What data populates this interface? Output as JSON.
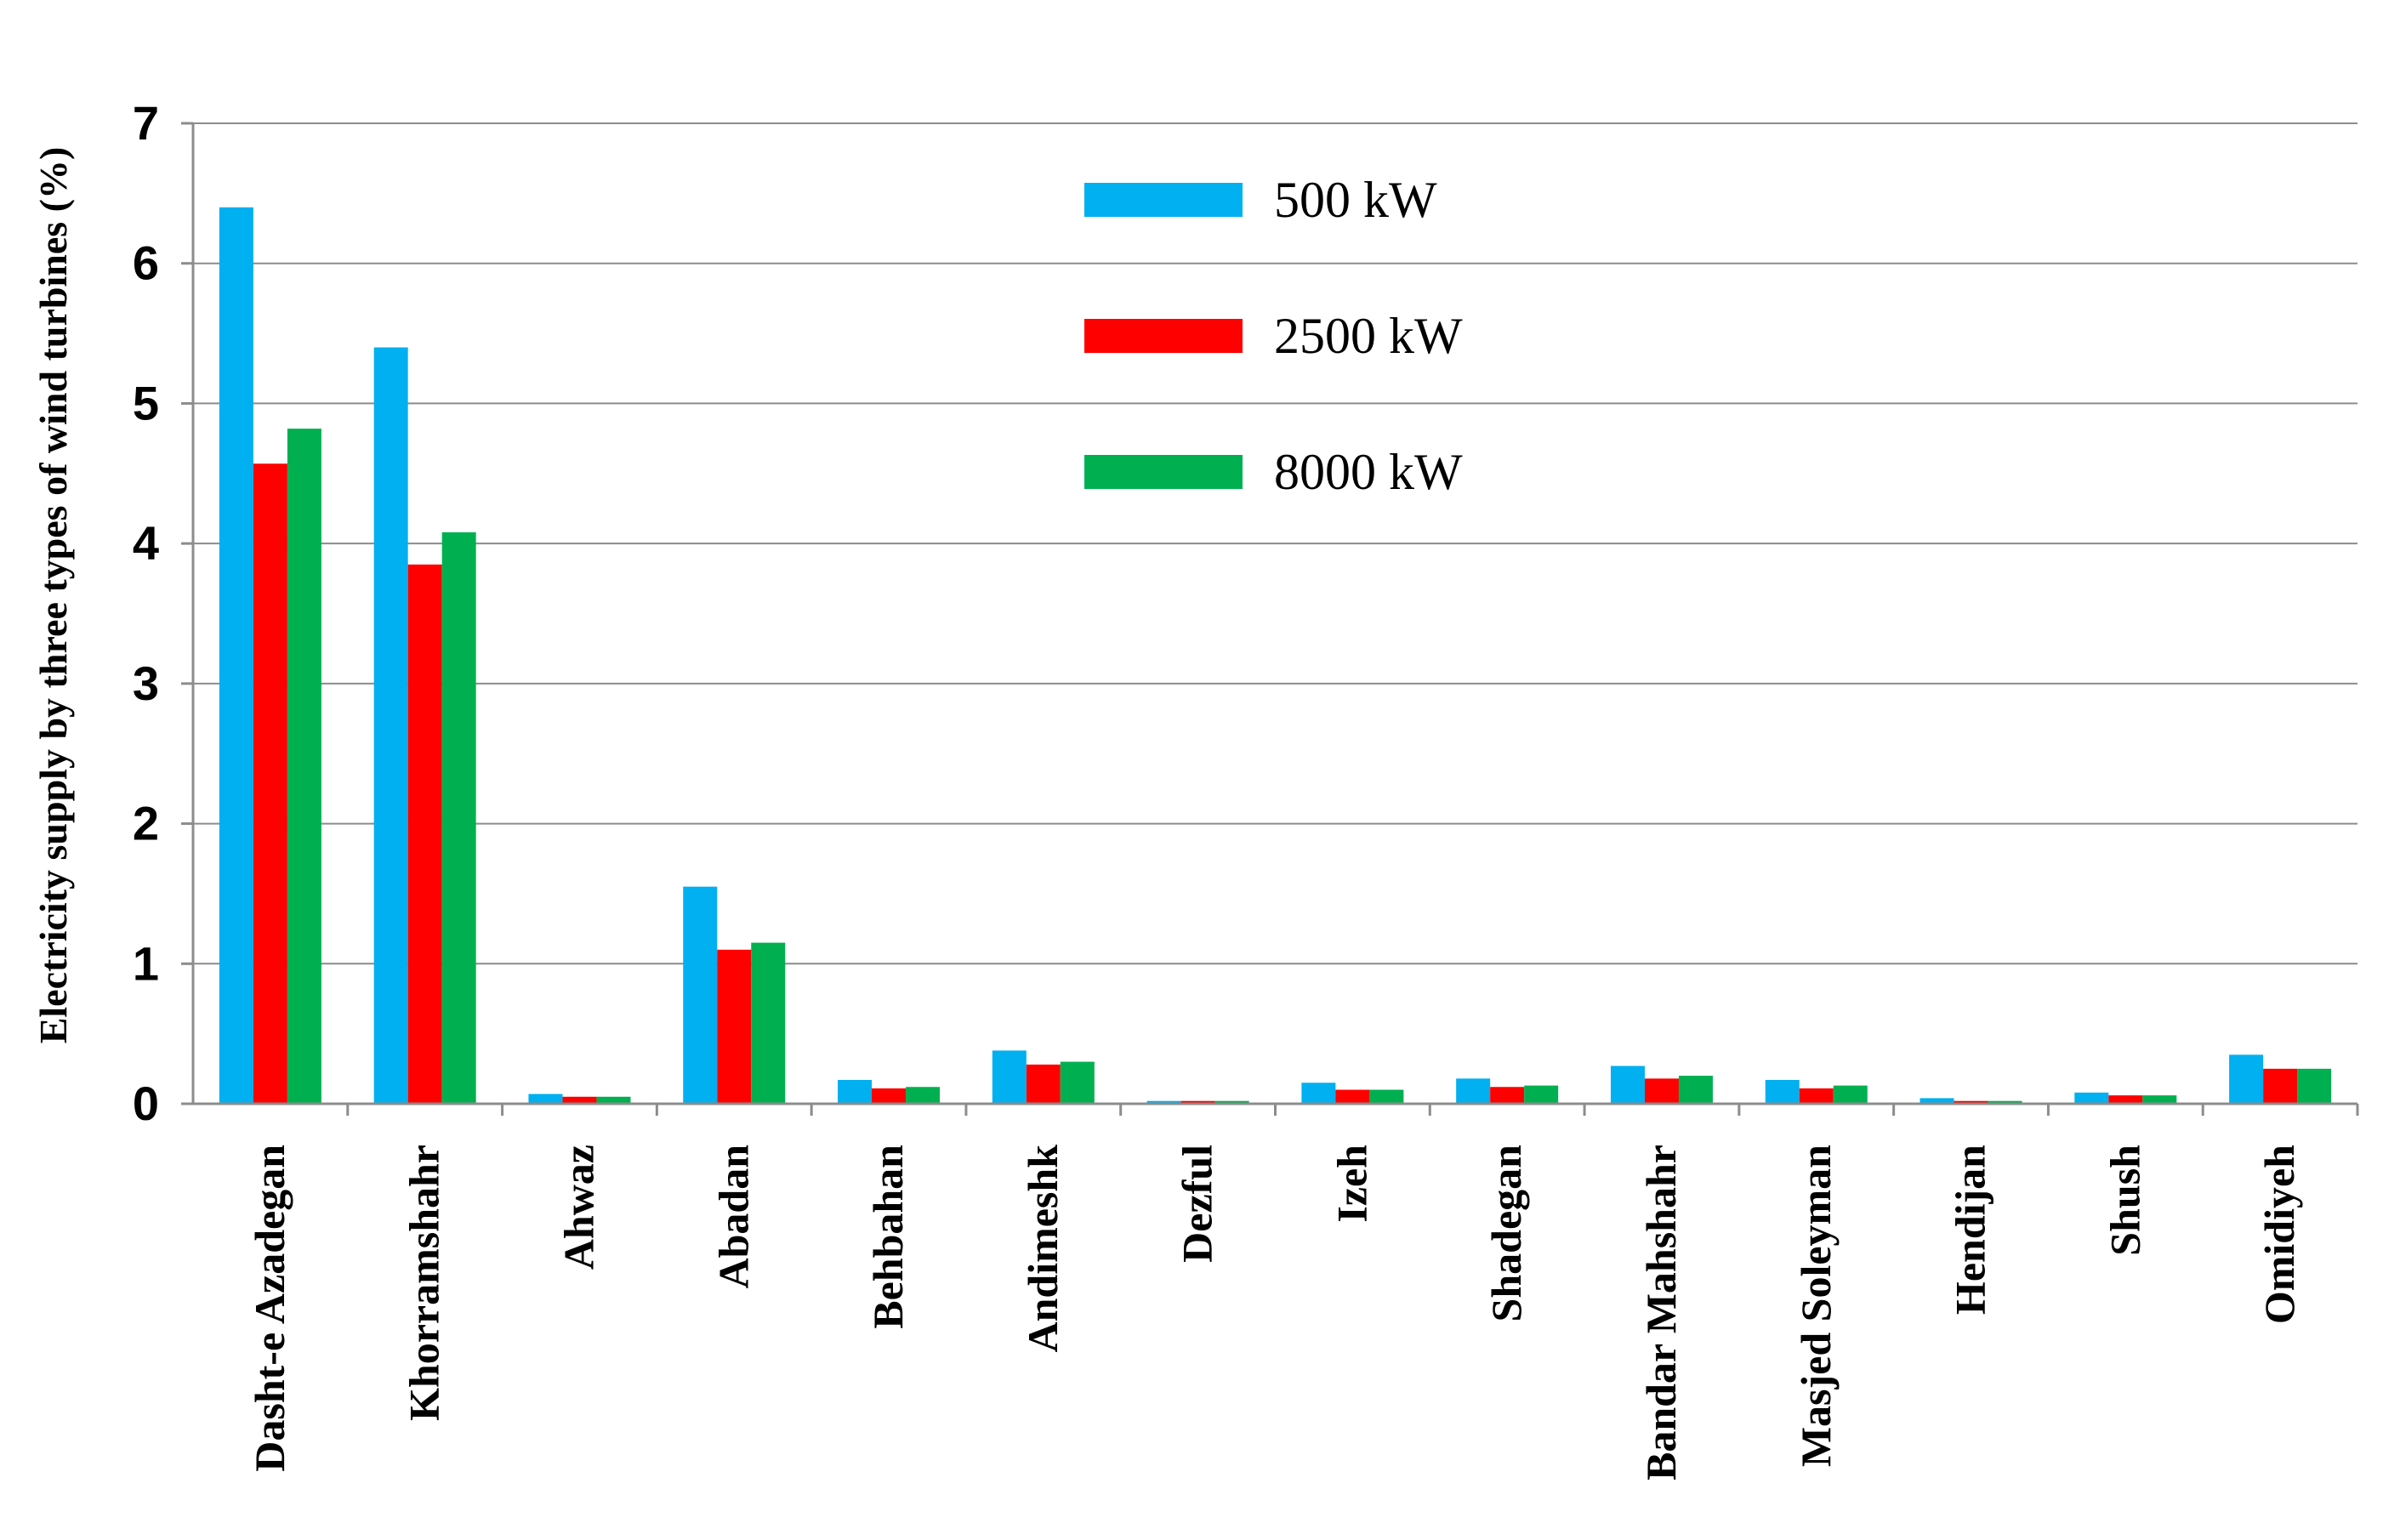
{
  "chart_data": {
    "type": "bar",
    "title": "",
    "xlabel": "",
    "ylabel": "Electricity supply by three types of wind turbines (%)",
    "ylim": [
      0,
      7
    ],
    "yticks": [
      0,
      1,
      2,
      3,
      4,
      5,
      6,
      7
    ],
    "grid": true,
    "legend_position": "top-center",
    "categories": [
      "Dasht-e Azadegan",
      "Khorramshahr",
      "Ahwaz",
      "Abadan",
      "Behbahan",
      "Andimeshk",
      "Dezful",
      "Izeh",
      "Shadegan",
      "Bandar Mahshahr",
      "Masjed Soleyman",
      "Hendijan",
      "Shush",
      "Omidiyeh"
    ],
    "series": [
      {
        "name": "500 kW",
        "color": "#00b0f0",
        "values": [
          6.4,
          5.4,
          0.07,
          1.55,
          0.17,
          0.38,
          0.02,
          0.15,
          0.18,
          0.27,
          0.17,
          0.04,
          0.08,
          0.35
        ]
      },
      {
        "name": "2500 kW",
        "color": "#ff0000",
        "values": [
          4.57,
          3.85,
          0.05,
          1.1,
          0.11,
          0.28,
          0.02,
          0.1,
          0.12,
          0.18,
          0.11,
          0.02,
          0.06,
          0.25
        ]
      },
      {
        "name": "8000 kW",
        "color": "#00b050",
        "values": [
          4.82,
          4.08,
          0.05,
          1.15,
          0.12,
          0.3,
          0.02,
          0.1,
          0.13,
          0.2,
          0.13,
          0.02,
          0.06,
          0.25
        ]
      }
    ]
  }
}
